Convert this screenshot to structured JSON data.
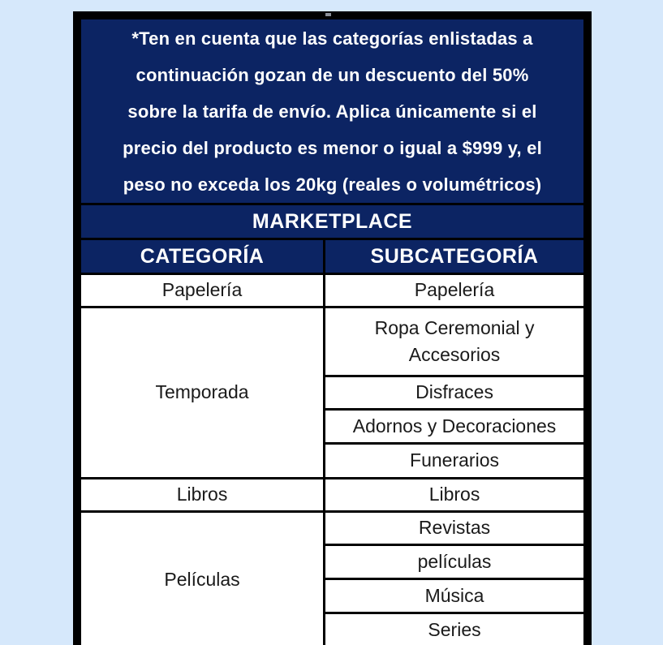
{
  "page": {
    "background_color": "#d6e8fb"
  },
  "disclaimer": {
    "lines": [
      "*Ten en cuenta que las categorías enlistadas a",
      "continuación gozan de un descuento del 50%",
      "sobre la tarifa de envío. Aplica únicamente si el",
      "precio del producto es menor o igual a $999 y, el",
      "peso no exceda los 20kg (reales o volumétricos)"
    ]
  },
  "table": {
    "title": "MARKETPLACE",
    "columns": [
      "CATEGORÍA",
      "SUBCATEGORÍA"
    ],
    "groups": [
      {
        "category": "Papelería",
        "subcategories": [
          "Papelería"
        ]
      },
      {
        "category": "Temporada",
        "subcategories": [
          "Ropa Ceremonial y Accesorios",
          "Disfraces",
          "Adornos y Decoraciones",
          "Funerarios"
        ]
      },
      {
        "category": "Libros",
        "subcategories": [
          "Libros"
        ]
      },
      {
        "category": "Películas",
        "subcategories": [
          "Revistas",
          "películas",
          "Música",
          "Series"
        ]
      }
    ],
    "colors": {
      "header_background": "#0c2463",
      "header_text": "#ffffff",
      "cell_background": "#ffffff",
      "cell_text": "#1a1a1a",
      "border": "#000000"
    }
  }
}
